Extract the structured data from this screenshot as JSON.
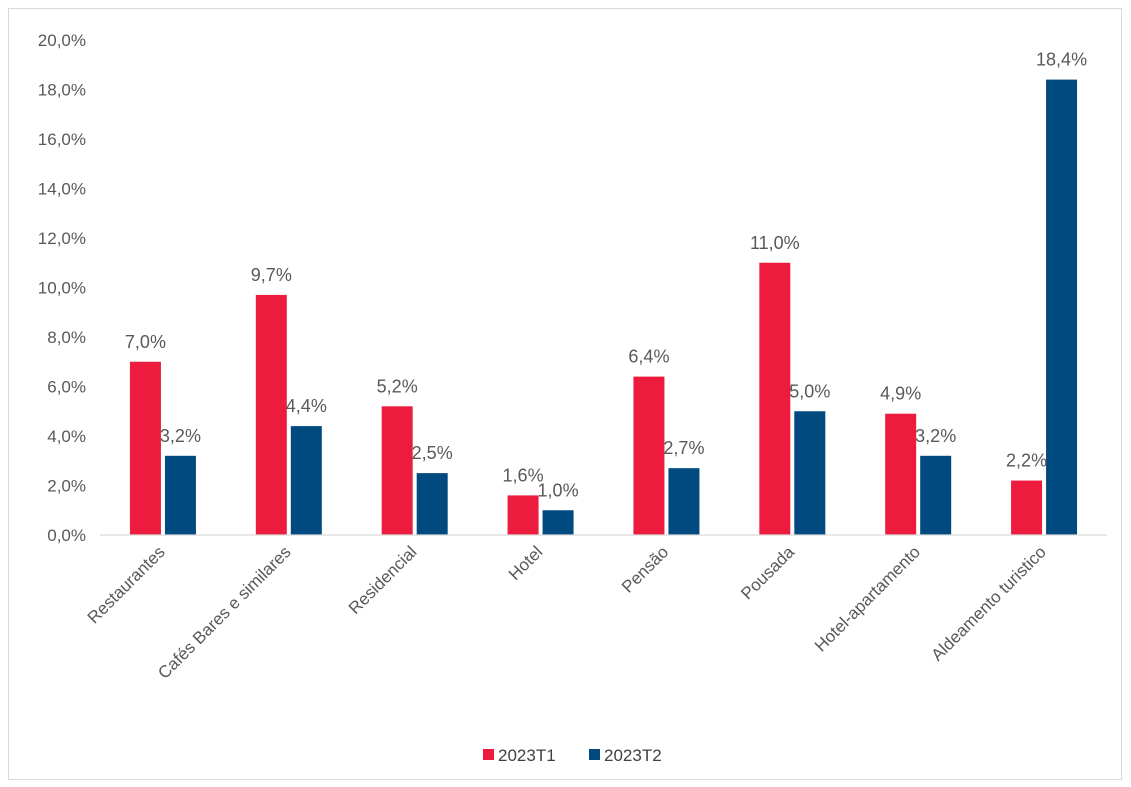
{
  "chart_data": {
    "type": "bar",
    "title": "",
    "xlabel": "",
    "ylabel": "",
    "categories": [
      "Restaurantes",
      "Cafés Bares e similares",
      "Residencial",
      "Hotel",
      "Pensão",
      "Pousada",
      "Hotel-apartamento",
      "Aldeamento turistico"
    ],
    "series": [
      {
        "name": "2023T1",
        "color": "#ed1c3e",
        "values": [
          7.0,
          9.7,
          5.2,
          1.6,
          6.4,
          11.0,
          4.9,
          2.2
        ],
        "labels": [
          "7,0%",
          "9,7%",
          "5,2%",
          "1,6%",
          "6,4%",
          "11,0%",
          "4,9%",
          "2,2%"
        ]
      },
      {
        "name": "2023T2",
        "color": "#004a80",
        "values": [
          3.2,
          4.4,
          2.5,
          1.0,
          2.7,
          5.0,
          3.2,
          18.4
        ],
        "labels": [
          "3,2%",
          "4,4%",
          "2,5%",
          "1,0%",
          "2,7%",
          "5,0%",
          "3,2%",
          "18,4%"
        ]
      }
    ],
    "ylim": [
      0,
      20
    ],
    "y_ticks": [
      "0,0%",
      "2,0%",
      "4,0%",
      "6,0%",
      "8,0%",
      "10,0%",
      "12,0%",
      "14,0%",
      "16,0%",
      "18,0%",
      "20,0%"
    ],
    "grid": false,
    "legend_position": "bottom"
  }
}
